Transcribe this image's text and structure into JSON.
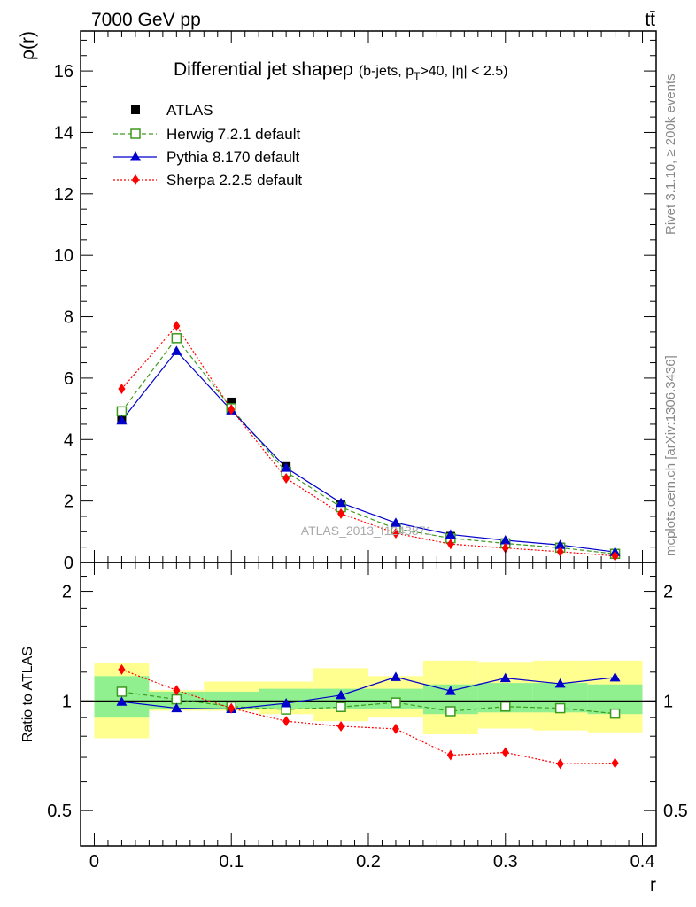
{
  "header": {
    "left": "7000 GeV pp",
    "right": "tt̄"
  },
  "side_text": {
    "top": "Rivet 3.1.10, ≥ 200k events",
    "bottom": "mcplots.cern.ch [arXiv:1306.3436]"
  },
  "watermark": "ATLAS_2013_I1243871",
  "chart_data": [
    {
      "type": "scatter",
      "title": "Differential jet shapeρ (b-jets, p_T>40, |η| < 2.5)",
      "title_main": "Differential jet shapeρ",
      "title_sub_pre": "(b-jets, p",
      "title_sub_subscript": "T",
      "title_sub_post": ">40, |η| < 2.5)",
      "ylabel": "ρ(r)",
      "xlabel": "",
      "xlim": [
        -0.01,
        0.41
      ],
      "ylim": [
        0,
        17.3
      ],
      "yticks": [
        0,
        2,
        4,
        6,
        8,
        10,
        12,
        14,
        16
      ],
      "ytick_labels": [
        "0",
        "2",
        "4",
        "6",
        "8",
        "10",
        "12",
        "14",
        "16"
      ],
      "legend_position": "top-left",
      "x": [
        0.02,
        0.06,
        0.1,
        0.14,
        0.18,
        0.22,
        0.26,
        0.3,
        0.34,
        0.38
      ],
      "series": [
        {
          "name": "ATLAS",
          "color": "#000000",
          "marker": "filled-square",
          "line": "none",
          "values": [
            4.65,
            7.28,
            5.22,
            3.12,
            1.87,
            1.11,
            0.85,
            0.64,
            0.5,
            0.3
          ]
        },
        {
          "name": "Herwig 7.2.1 default",
          "color": "#3d9a1e",
          "marker": "open-square",
          "line": "dashed",
          "values": [
            4.92,
            7.3,
            5.02,
            2.95,
            1.8,
            1.1,
            0.79,
            0.62,
            0.48,
            0.28
          ]
        },
        {
          "name": "Pythia 8.170 default",
          "color": "#0000cc",
          "marker": "triangle",
          "line": "solid",
          "values": [
            4.62,
            6.88,
            4.95,
            3.08,
            1.94,
            1.29,
            0.91,
            0.72,
            0.57,
            0.34
          ]
        },
        {
          "name": "Sherpa 2.2.5 default",
          "color": "#ff0000",
          "marker": "diamond",
          "line": "dotted",
          "values": [
            5.65,
            7.7,
            4.98,
            2.74,
            1.59,
            0.95,
            0.6,
            0.47,
            0.35,
            0.21
          ]
        }
      ]
    },
    {
      "type": "scatter",
      "title": "",
      "ylabel": "Ratio to ATLAS",
      "xlabel": "r",
      "xlim": [
        -0.01,
        0.41
      ],
      "ylim": [
        0.4,
        2.4
      ],
      "yscale": "log",
      "xticks": [
        0,
        0.1,
        0.2,
        0.3,
        0.4
      ],
      "xtick_labels": [
        "0",
        "0.1",
        "0.2",
        "0.3",
        "0.4"
      ],
      "yticks": [
        0.5,
        1,
        2
      ],
      "ytick_labels": [
        "0.5",
        "1",
        "2"
      ],
      "x": [
        0.02,
        0.06,
        0.1,
        0.14,
        0.18,
        0.22,
        0.26,
        0.3,
        0.34,
        0.38
      ],
      "bin_edges": [
        0.0,
        0.04,
        0.08,
        0.12,
        0.16,
        0.2,
        0.24,
        0.28,
        0.32,
        0.36,
        0.4
      ],
      "reference": 1,
      "bands": {
        "inner": {
          "color": "#90f090",
          "low": [
            0.9,
            0.95,
            0.95,
            0.95,
            0.95,
            0.95,
            0.92,
            0.93,
            0.93,
            0.92
          ],
          "high": [
            1.17,
            1.06,
            1.06,
            1.08,
            1.08,
            1.08,
            1.11,
            1.12,
            1.12,
            1.11
          ]
        },
        "outer": {
          "color": "#ffff90",
          "low": [
            0.79,
            0.94,
            0.94,
            0.92,
            0.88,
            0.9,
            0.81,
            0.84,
            0.83,
            0.82
          ],
          "high": [
            1.27,
            1.07,
            1.13,
            1.13,
            1.23,
            1.17,
            1.29,
            1.28,
            1.29,
            1.29
          ]
        }
      },
      "series": [
        {
          "name": "Herwig 7.2.1 default",
          "color": "#3d9a1e",
          "marker": "open-square",
          "line": "dashed",
          "values": [
            1.06,
            1.01,
            0.965,
            0.947,
            0.962,
            0.99,
            0.937,
            0.965,
            0.955,
            0.923
          ]
        },
        {
          "name": "Pythia 8.170 default",
          "color": "#0000cc",
          "marker": "triangle",
          "line": "solid",
          "values": [
            0.995,
            0.955,
            0.95,
            0.985,
            1.037,
            1.163,
            1.065,
            1.155,
            1.115,
            1.16
          ]
        },
        {
          "name": "Sherpa 2.2.5 default",
          "color": "#ff0000",
          "marker": "diamond",
          "line": "dotted",
          "values": [
            1.22,
            1.07,
            0.955,
            0.88,
            0.852,
            0.838,
            0.71,
            0.722,
            0.672,
            0.675
          ]
        }
      ]
    }
  ]
}
